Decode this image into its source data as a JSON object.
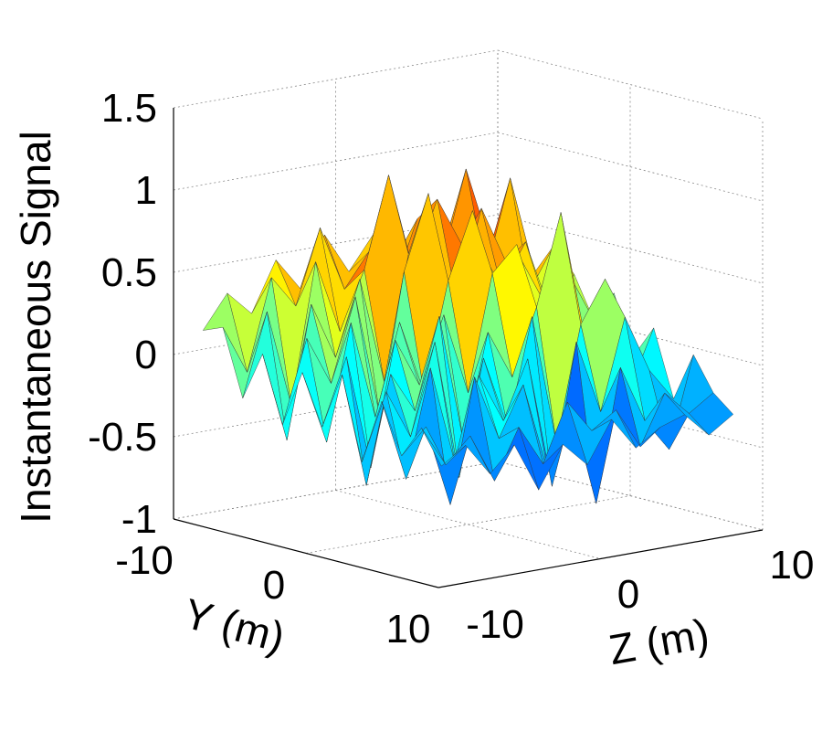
{
  "chart_data": {
    "type": "surface",
    "title": "",
    "xlabel": "Y (m)",
    "ylabel": "Z (m)",
    "zlabel": "Instantaneous Signal",
    "xlim": [
      -10,
      10
    ],
    "ylim": [
      -10,
      10
    ],
    "zlim": [
      -1,
      1.5
    ],
    "x_ticks": [
      "-10",
      "0",
      "10"
    ],
    "y_ticks": [
      "-10",
      "0",
      "10"
    ],
    "z_ticks": [
      "-1",
      "-0.5",
      "0",
      "0.5",
      "1",
      "1.5"
    ],
    "grid": true,
    "colormap": "jet",
    "x": [
      -9,
      -7.5,
      -6,
      -4.5,
      -3,
      -1.5,
      0,
      1.5,
      3,
      4.5,
      6,
      7.5,
      9
    ],
    "y": [
      -9,
      -7.5,
      -6,
      -4.5,
      -3,
      -1.5,
      0,
      1.5,
      3,
      4.5,
      6,
      7.5,
      9
    ],
    "z": [
      [
        0.15,
        0.35,
        0.2,
        0.5,
        0.3,
        0.6,
        0.35,
        0.55,
        0.4,
        0.3,
        0.45,
        0.2,
        0.35
      ],
      [
        0.2,
        -0.1,
        0.45,
        0.25,
        0.7,
        0.3,
        0.5,
        0.25,
        0.65,
        0.35,
        0.9,
        0.4,
        0.3
      ],
      [
        -0.2,
        0.3,
        -0.3,
        0.55,
        0.1,
        0.45,
        1.0,
        0.4,
        0.8,
        0.5,
        0.3,
        0.85,
        0.25
      ],
      [
        0.1,
        -0.45,
        0.35,
        0.0,
        0.45,
        -0.2,
        0.55,
        0.35,
        0.2,
        0.75,
        0.4,
        0.2,
        0.45
      ],
      [
        -0.3,
        0.2,
        -0.1,
        0.4,
        -0.35,
        0.5,
        0.95,
        0.1,
        0.6,
        0.3,
        0.55,
        0.1,
        0.3
      ],
      [
        0.05,
        -0.4,
        0.3,
        -0.3,
        0.25,
        -0.2,
        0.45,
        0.85,
        -0.1,
        0.5,
        0.2,
        0.35,
        0.05
      ],
      [
        -0.25,
        0.15,
        -0.55,
        0.2,
        -0.1,
        0.3,
        -0.2,
        0.5,
        0.65,
        0.0,
        0.4,
        -0.2,
        0.25
      ],
      [
        0.1,
        -0.6,
        0.05,
        -0.2,
        0.35,
        -0.45,
        0.2,
        -0.1,
        0.3,
        0.85,
        0.05,
        0.3,
        -0.1
      ],
      [
        -0.4,
        0.0,
        -0.3,
        0.25,
        -0.6,
        0.1,
        -0.35,
        0.3,
        -0.5,
        0.2,
        0.45,
        -0.25,
        0.1
      ],
      [
        0.0,
        -0.5,
        0.15,
        -0.45,
        0.05,
        -0.25,
        0.1,
        -0.7,
        0.15,
        -0.3,
        0.25,
        -0.1,
        -0.3
      ],
      [
        -0.3,
        -0.15,
        -0.65,
        0.1,
        -0.3,
        0.0,
        -0.55,
        -0.2,
        -0.8,
        0.0,
        -0.35,
        -0.55,
        0.0
      ],
      [
        -0.1,
        -0.35,
        -0.2,
        -0.5,
        -0.2,
        -0.45,
        -0.1,
        -0.3,
        -0.2,
        -0.45,
        -0.15,
        -0.3,
        -0.2
      ],
      [
        -0.3,
        -0.2,
        -0.4,
        -0.25,
        -0.55,
        -0.3,
        -0.45,
        -0.2,
        -0.4,
        -0.3,
        -0.25,
        -0.4,
        -0.3
      ]
    ]
  }
}
